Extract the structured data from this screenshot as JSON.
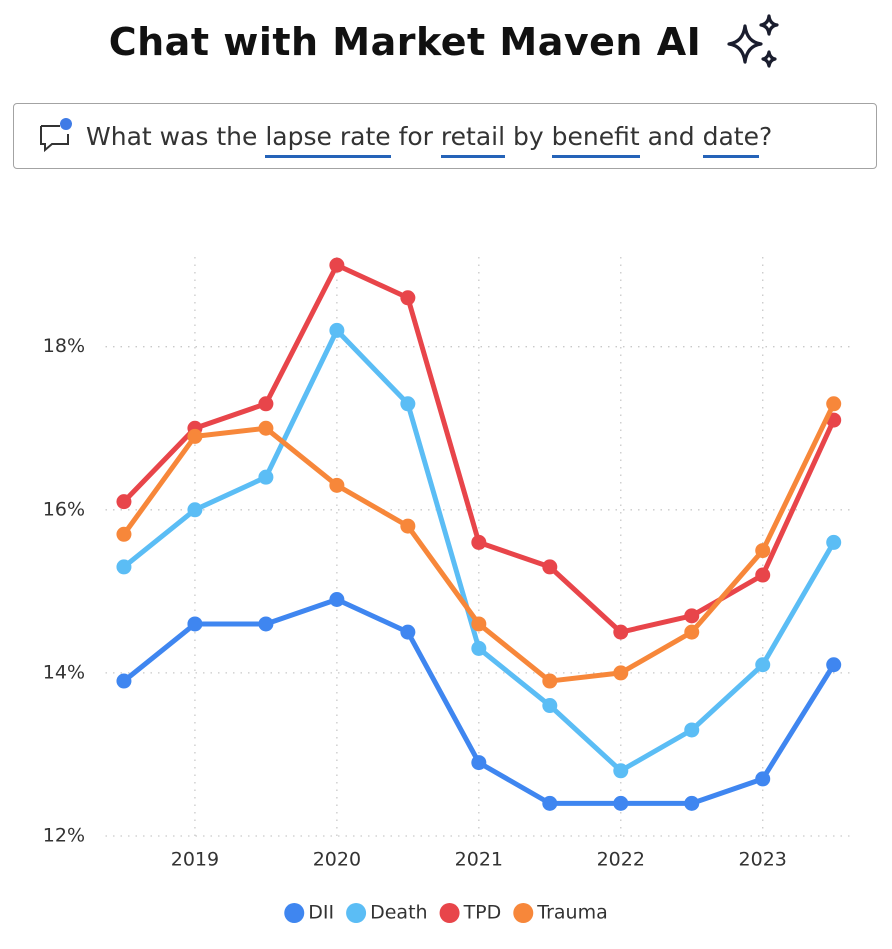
{
  "header": {
    "title": "Chat with Market Maven AI"
  },
  "query": {
    "parts": [
      {
        "text": "What was the "
      },
      {
        "text": "lapse rate",
        "highlight": true
      },
      {
        "text": " for "
      },
      {
        "text": "retail",
        "highlight": true
      },
      {
        "text": " by "
      },
      {
        "text": "benefit",
        "highlight": true
      },
      {
        "text": " and "
      },
      {
        "text": "date",
        "highlight": true
      },
      {
        "text": "?"
      }
    ]
  },
  "chart_data": {
    "type": "line",
    "x": [
      2018.5,
      2019,
      2019.5,
      2020,
      2020.5,
      2021,
      2021.5,
      2022,
      2022.5,
      2023,
      2023.5
    ],
    "xlim": [
      2018.37,
      2023.65
    ],
    "xticks": [
      2019,
      2020,
      2021,
      2022,
      2023
    ],
    "ylim": [
      12,
      19.1
    ],
    "yticks": [
      {
        "value": 12,
        "label": "12%"
      },
      {
        "value": 14,
        "label": "14%"
      },
      {
        "value": 16,
        "label": "16%"
      },
      {
        "value": 18,
        "label": "18%"
      }
    ],
    "grid": true,
    "legend": "bottom",
    "series": [
      {
        "name": "DII",
        "color": "#3f86f0",
        "values": [
          13.9,
          14.6,
          14.6,
          14.9,
          14.5,
          12.9,
          12.4,
          12.4,
          12.4,
          12.7,
          14.1
        ]
      },
      {
        "name": "Death",
        "color": "#5bbdf5",
        "values": [
          15.3,
          16.0,
          16.4,
          18.2,
          17.3,
          14.3,
          13.6,
          12.8,
          13.3,
          14.1,
          15.6
        ]
      },
      {
        "name": "TPD",
        "color": "#e8454a",
        "values": [
          16.1,
          17.0,
          17.3,
          19.0,
          18.6,
          15.6,
          15.3,
          14.5,
          14.7,
          15.2,
          17.1
        ]
      },
      {
        "name": "Trauma",
        "color": "#f7873a",
        "values": [
          15.7,
          16.9,
          17.0,
          16.3,
          15.8,
          14.6,
          13.9,
          14.0,
          14.5,
          15.5,
          17.3
        ]
      }
    ]
  }
}
